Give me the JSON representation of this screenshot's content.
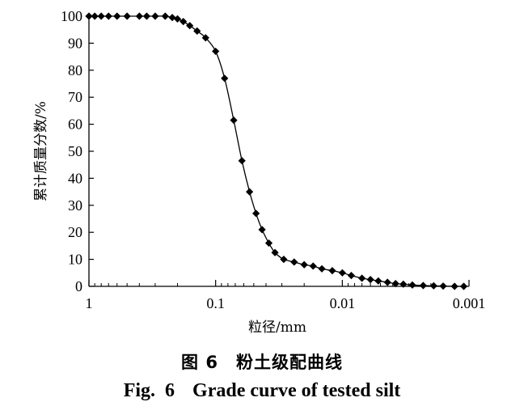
{
  "chart_data": {
    "type": "line",
    "xlabel": "粒径/mm",
    "ylabel": "累计质量分数/%",
    "x_scale": "log",
    "x_reversed": true,
    "xlim": [
      1,
      0.001
    ],
    "ylim": [
      0,
      100
    ],
    "x_ticks": [
      1,
      0.1,
      0.01,
      0.001
    ],
    "x_tick_labels": [
      "1",
      "0.1",
      "0.01",
      "0.001"
    ],
    "y_ticks": [
      0,
      10,
      20,
      30,
      40,
      50,
      60,
      70,
      80,
      90,
      100
    ],
    "y_tick_labels": [
      "0",
      "10",
      "20",
      "30",
      "40",
      "50",
      "60",
      "70",
      "80",
      "90",
      "100"
    ],
    "grid": false,
    "marker": "diamond",
    "color": "#000000",
    "series": [
      {
        "x": [
          1,
          0.9,
          0.8,
          0.7,
          0.6,
          0.5,
          0.4,
          0.35,
          0.3,
          0.25,
          0.22,
          0.2,
          0.18,
          0.16,
          0.14,
          0.12,
          0.1,
          0.085,
          0.072,
          0.062,
          0.054,
          0.048,
          0.043,
          0.038,
          0.034,
          0.029,
          0.024,
          0.02,
          0.017,
          0.0145,
          0.012,
          0.01,
          0.0085,
          0.007,
          0.006,
          0.0052,
          0.0044,
          0.0038,
          0.0033,
          0.0028,
          0.0023,
          0.0019,
          0.0016,
          0.0013,
          0.0011
        ],
        "y": [
          100,
          100,
          100,
          100,
          100,
          100,
          100,
          100,
          100,
          100,
          99.5,
          99,
          98,
          96.5,
          94.5,
          92,
          87,
          77,
          61.5,
          46.5,
          35,
          27,
          21,
          16,
          12.5,
          10,
          9,
          8,
          7.5,
          6.5,
          5.8,
          5,
          4,
          3,
          2.5,
          2,
          1.5,
          1,
          0.8,
          0.5,
          0.3,
          0.2,
          0.1,
          0,
          0
        ]
      }
    ]
  },
  "caption": {
    "cn_fig": "图 6",
    "cn_title": "粉土级配曲线",
    "en_fig": "Fig.  6",
    "en_title": "Grade curve of tested silt"
  }
}
